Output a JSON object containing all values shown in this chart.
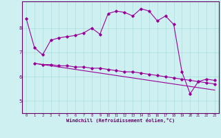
{
  "xlabel": "Windchill (Refroidissement éolien,°C)",
  "bg_color": "#cff0f0",
  "line_color": "#990099",
  "grid_color": "#aadddd",
  "xlim": [
    -0.5,
    23.5
  ],
  "ylim": [
    4.5,
    9.1
  ],
  "yticks": [
    5,
    6,
    7,
    8
  ],
  "xticks": [
    0,
    1,
    2,
    3,
    4,
    5,
    6,
    7,
    8,
    9,
    10,
    11,
    12,
    13,
    14,
    15,
    16,
    17,
    18,
    19,
    20,
    21,
    22,
    23
  ],
  "series1_x": [
    0,
    1,
    2,
    3,
    4,
    5,
    6,
    7,
    8,
    9,
    10,
    11,
    12,
    13,
    14,
    15,
    16,
    17,
    18,
    19,
    20,
    21,
    22,
    23
  ],
  "series1_y": [
    8.4,
    7.2,
    6.9,
    7.5,
    7.6,
    7.65,
    7.7,
    7.8,
    8.0,
    7.75,
    8.6,
    8.7,
    8.65,
    8.5,
    8.8,
    8.7,
    8.3,
    8.5,
    8.15,
    6.2,
    5.3,
    5.8,
    5.9,
    5.85
  ],
  "series2_x": [
    1,
    2,
    3,
    4,
    5,
    6,
    7,
    8,
    9,
    10,
    11,
    12,
    13,
    14,
    15,
    16,
    17,
    18,
    19,
    20,
    21,
    22,
    23
  ],
  "series2_y": [
    6.55,
    6.5,
    6.5,
    6.45,
    6.45,
    6.4,
    6.4,
    6.35,
    6.35,
    6.3,
    6.25,
    6.2,
    6.2,
    6.15,
    6.1,
    6.05,
    6.0,
    5.95,
    5.9,
    5.85,
    5.8,
    5.75,
    5.7
  ],
  "series3_x": [
    1,
    2,
    3,
    4,
    5,
    6,
    7,
    8,
    9,
    10,
    11,
    12,
    13,
    14,
    15,
    16,
    17,
    18,
    19,
    20,
    21,
    22,
    23
  ],
  "series3_y": [
    6.55,
    6.5,
    6.45,
    6.4,
    6.35,
    6.3,
    6.25,
    6.2,
    6.15,
    6.1,
    6.05,
    6.0,
    5.95,
    5.9,
    5.85,
    5.8,
    5.75,
    5.7,
    5.65,
    5.6,
    5.55,
    5.5,
    5.45
  ]
}
